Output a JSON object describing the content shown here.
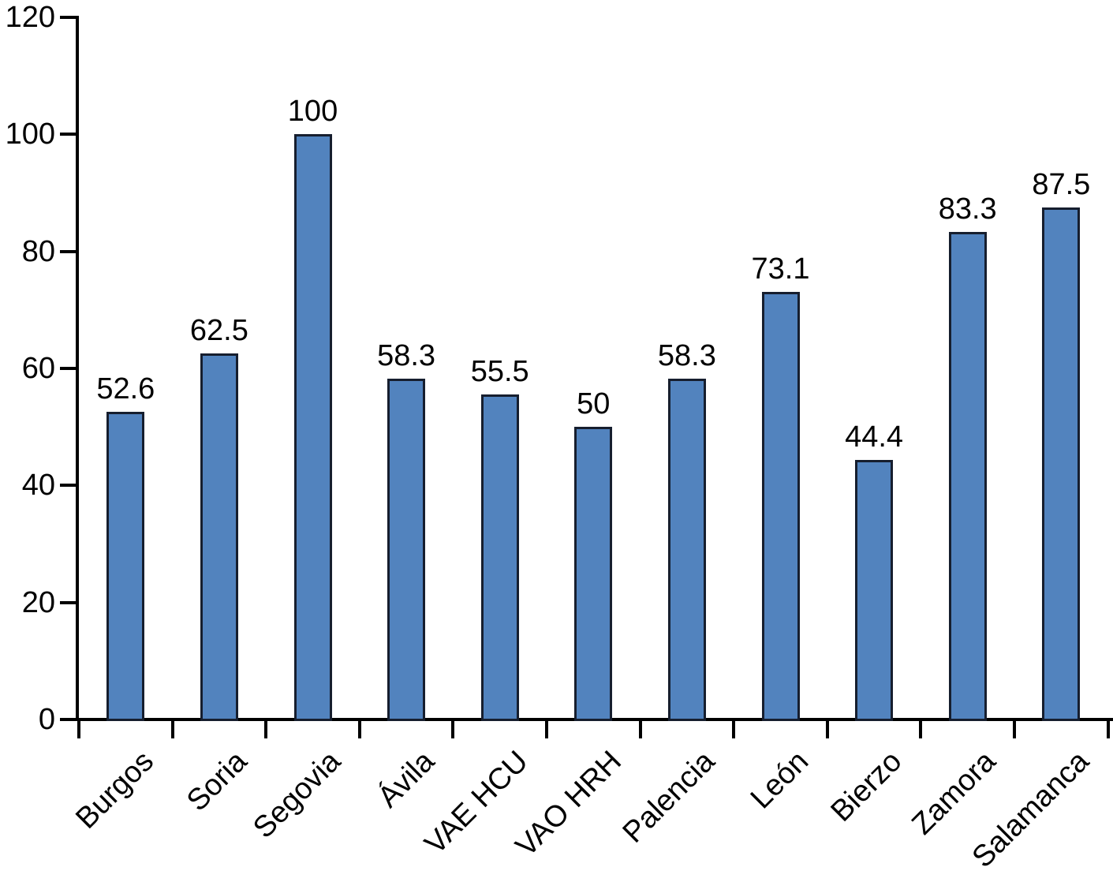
{
  "chart_data": {
    "type": "bar",
    "title": "",
    "xlabel": "",
    "ylabel": "",
    "categories": [
      "Burgos",
      "Soria",
      "Segovia",
      "Ávila",
      "VAE HCU",
      "VAO HRH",
      "Palencia",
      "León",
      "Bierzo",
      "Zamora",
      "Salamanca"
    ],
    "values": [
      52.6,
      62.5,
      100,
      58.3,
      55.5,
      50,
      58.3,
      73.1,
      44.4,
      83.3,
      87.5
    ],
    "bar_labels": [
      "52.6",
      "62.5",
      "100",
      "58.3",
      "55.5",
      "50",
      "58.3",
      "73.1",
      "44.4",
      "83.3",
      "87.5"
    ],
    "ylim": [
      0,
      120
    ],
    "yticks": [
      0,
      20,
      40,
      60,
      80,
      100,
      120
    ],
    "ytick_labels": [
      "0",
      "20",
      "40",
      "60",
      "80",
      "100",
      "120"
    ],
    "grid": false,
    "legend": null,
    "xtick_rotation_deg": 45,
    "colors": {
      "bar_fill": "#5283BE",
      "bar_border": "#161E2E",
      "axis": "#000000",
      "text": "#000000",
      "background": "#FFFFFF"
    }
  }
}
